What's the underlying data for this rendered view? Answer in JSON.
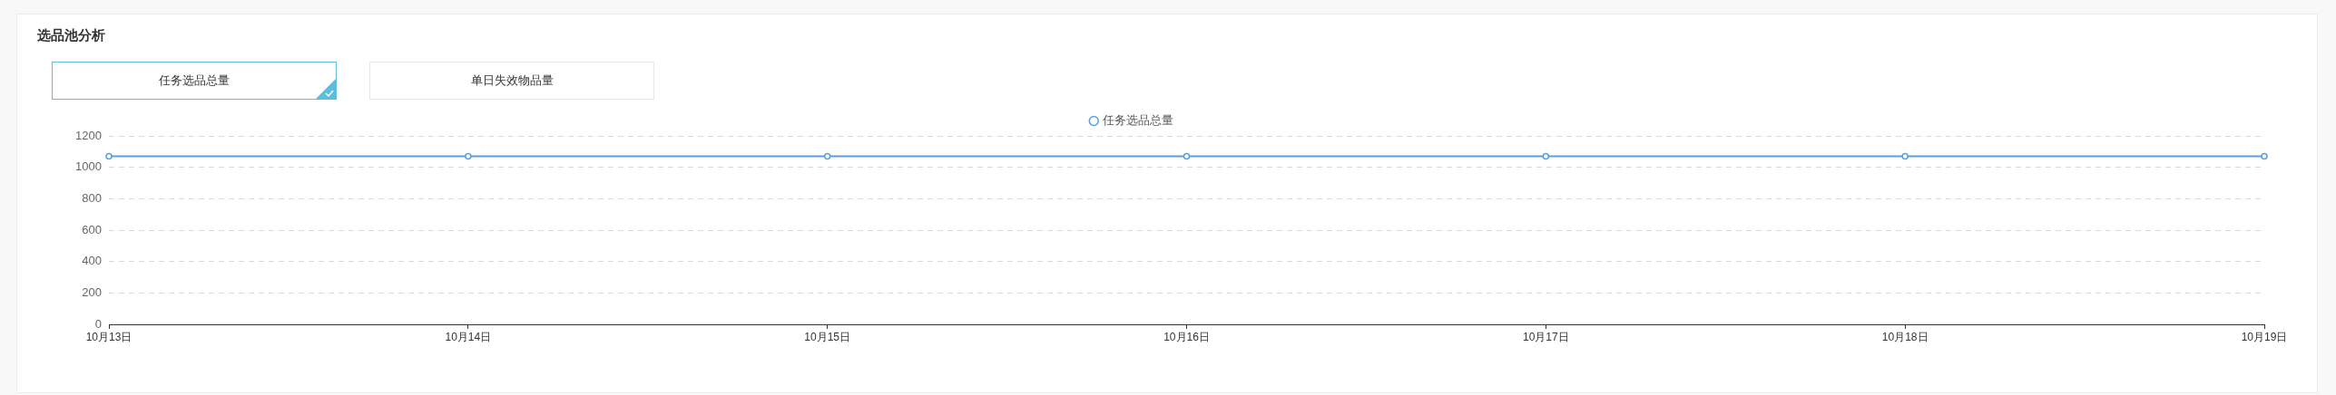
{
  "chart_data": {
    "type": "line",
    "title": "选品池分析",
    "annotations": [
      "任务选品总量",
      "单日失效物品量"
    ],
    "categories": [
      "10月13日",
      "10月14日",
      "10月15日",
      "10月16日",
      "10月17日",
      "10月18日",
      "10月19日"
    ],
    "series": [
      {
        "name": "任务选品总量",
        "color": "#5a9fdc",
        "values": [
          1070,
          1070,
          1070,
          1070,
          1070,
          1070,
          1070
        ]
      }
    ],
    "ylim": [
      0,
      1200
    ],
    "yticks": [
      0,
      200,
      400,
      600,
      800,
      1000,
      1200
    ],
    "grid": "y",
    "legend": "top",
    "marker": "circle"
  }
}
